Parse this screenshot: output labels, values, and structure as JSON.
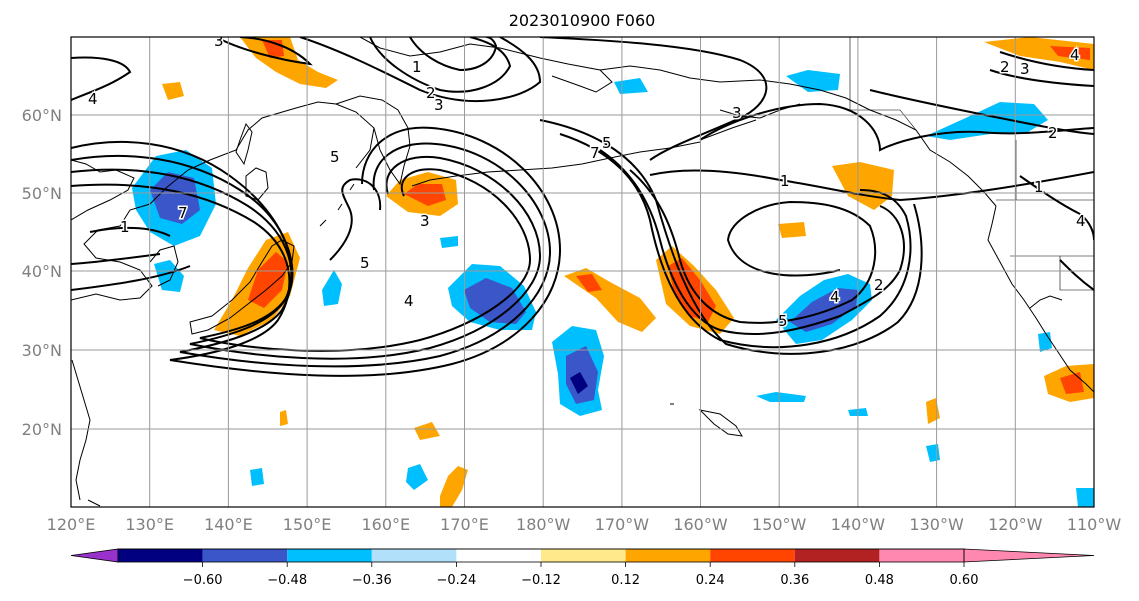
{
  "title": "2023010900 F060",
  "map": {
    "lon_labels": [
      "120°E",
      "130°E",
      "140°E",
      "150°E",
      "160°E",
      "170°E",
      "180°W",
      "170°W",
      "160°W",
      "150°W",
      "140°W",
      "130°W",
      "120°W",
      "110°W"
    ],
    "lat_labels": [
      "60°N",
      "50°N",
      "40°N",
      "30°N",
      "20°N"
    ],
    "contour_labels": [
      "4",
      "7",
      "1",
      "3",
      "1",
      "2",
      "3",
      "5",
      "7",
      "5",
      "3",
      "4",
      "5",
      "3",
      "1",
      "2",
      "1",
      "4",
      "5",
      "2",
      "2",
      "3",
      "4",
      "4"
    ]
  },
  "colorbar": {
    "ticks": [
      "−0.60",
      "−0.48",
      "−0.36",
      "−0.24",
      "−0.12",
      "0.12",
      "0.24",
      "0.36",
      "0.48",
      "0.60"
    ],
    "colors": [
      "#9932cc",
      "#000080",
      "#3a56c8",
      "#00bfff",
      "#b0e0fa",
      "#ffffff",
      "#ffe98a",
      "#ffa500",
      "#ff4500",
      "#b22222",
      "#ff88b0"
    ]
  }
}
